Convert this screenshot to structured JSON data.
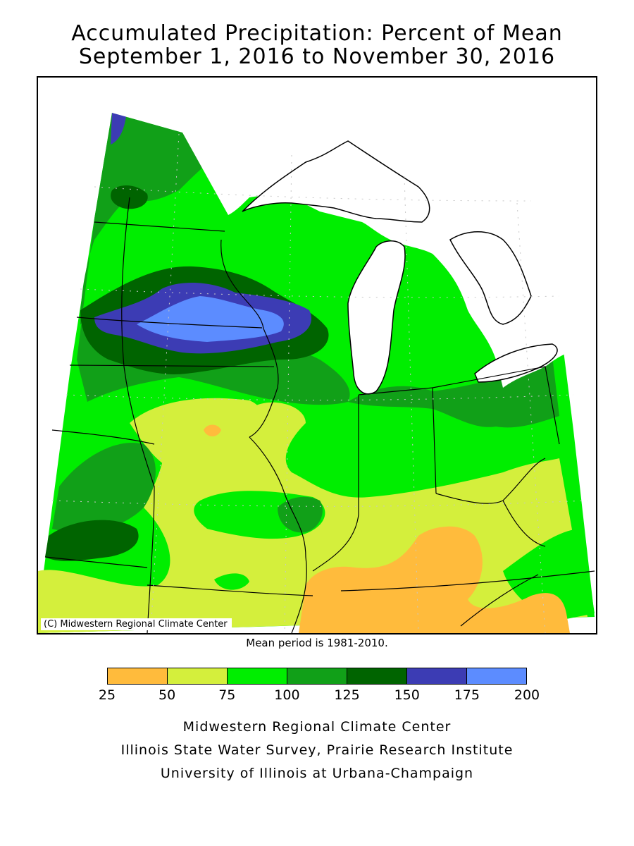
{
  "title": {
    "line1": "Accumulated Precipitation: Percent of Mean",
    "line2": "September 1, 2016 to November 30, 2016"
  },
  "map": {
    "copyright": "(C) Midwestern Regional Climate Center",
    "mean_period_note": "Mean period is 1981-2010."
  },
  "legend": {
    "bins": [
      {
        "from": 25,
        "to": 50,
        "color": "#ffbb3c"
      },
      {
        "from": 50,
        "to": 75,
        "color": "#d4ef3c"
      },
      {
        "from": 75,
        "to": 100,
        "color": "#00ee00"
      },
      {
        "from": 100,
        "to": 125,
        "color": "#11a018"
      },
      {
        "from": 125,
        "to": 150,
        "color": "#006400"
      },
      {
        "from": 150,
        "to": 175,
        "color": "#3c3cb4"
      },
      {
        "from": 175,
        "to": 200,
        "color": "#5c8cff"
      }
    ],
    "ticks": [
      "25",
      "50",
      "75",
      "100",
      "125",
      "150",
      "175",
      "200"
    ]
  },
  "credits": {
    "line1": "Midwestern Regional Climate Center",
    "line2": "Illinois State Water Survey, Prairie Research Institute",
    "line3": "University of Illinois at Urbana-Champaign"
  }
}
